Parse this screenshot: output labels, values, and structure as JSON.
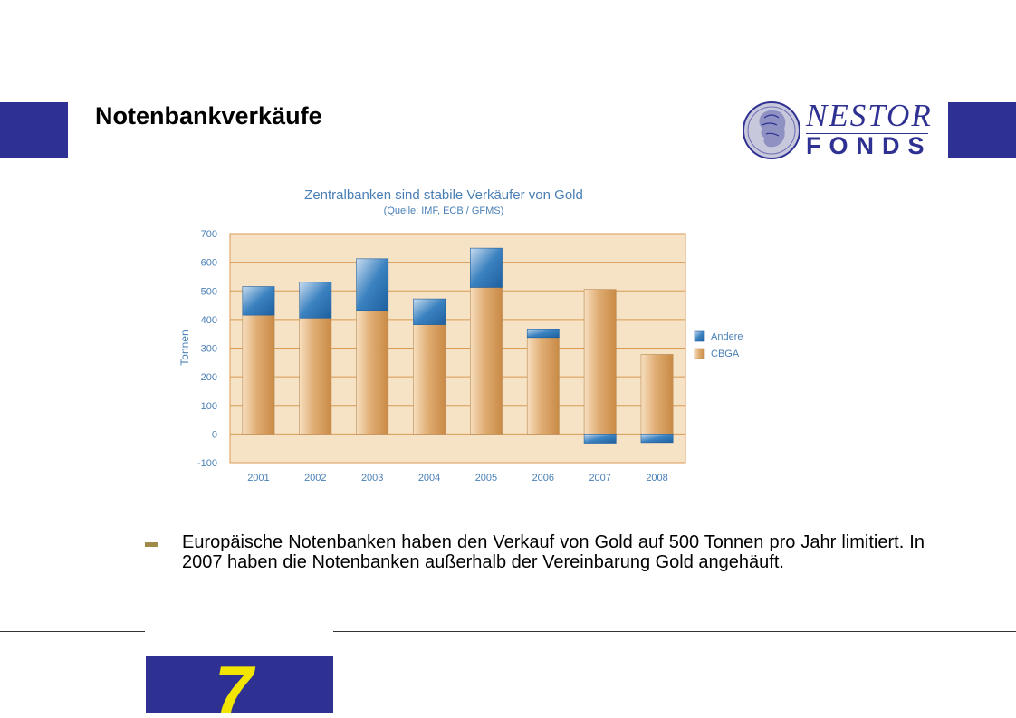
{
  "slide": {
    "title": "Notenbankverkäufe",
    "logo_line1": "NESTOR",
    "logo_line2": "FONDS",
    "bullet_text": "Europäische Notenbanken haben den Verkauf von Gold auf 500 Tonnen pro Jahr limitiert. In 2007 haben die Notenbanken außerhalb der Vereinbarung Gold angehäuft.",
    "page_number": "7"
  },
  "colors": {
    "brand_blue": "#2e3192",
    "page_number_yellow": "#f2e600",
    "plot_background": "#f6e2c4",
    "gridline": "#d89a55",
    "cbga_bar": "#d9a36a",
    "andere_bar": "#2f73b0",
    "chart_title": "#4a7fb5"
  },
  "chart_data": {
    "type": "bar",
    "stacked": true,
    "title": "Zentralbanken sind stabile Verkäufer von Gold",
    "subtitle": "(Quelle: IMF, ECB / GFMS)",
    "xlabel": "",
    "ylabel": "Tonnen",
    "ylim": [
      -100,
      700
    ],
    "yticks": [
      700,
      600,
      500,
      400,
      300,
      200,
      100,
      0,
      -100
    ],
    "grid": true,
    "legend_position": "right",
    "categories": [
      "2001",
      "2002",
      "2003",
      "2004",
      "2005",
      "2006",
      "2007",
      "2008"
    ],
    "series": [
      {
        "name": "CBGA",
        "values": [
          415,
          405,
          432,
          382,
          512,
          337,
          505,
          278
        ]
      },
      {
        "name": "Andere",
        "values": [
          100,
          125,
          180,
          90,
          137,
          30,
          -32,
          -30
        ]
      }
    ]
  }
}
